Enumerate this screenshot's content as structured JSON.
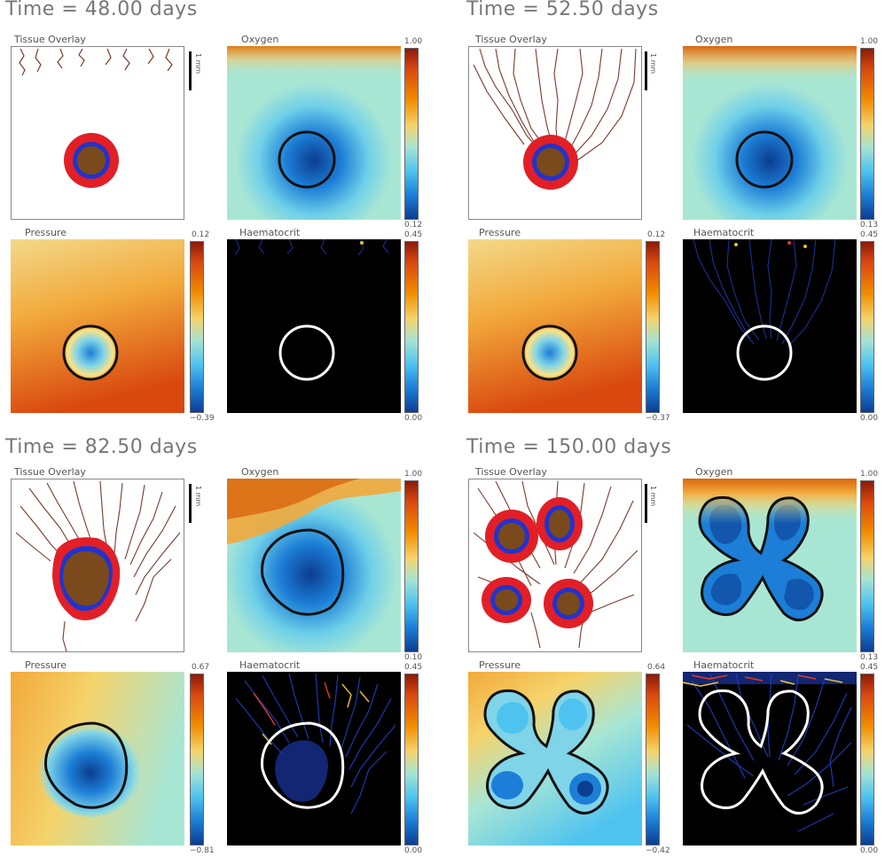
{
  "colors": {
    "tumour_core": "#7a4a1c",
    "tumour_rim": "#2233cc",
    "necrotic_halo": "#e21f26",
    "vessels": "#7b3a2c",
    "contour_dark": "#111111",
    "contour_light": "#ffffff",
    "haematocrit_bg": "#000000"
  },
  "quadrants": [
    {
      "time_label": "Time = 48.00 days",
      "panels": {
        "tissue": {
          "label": "Tissue Overlay",
          "scale_label": "1 mm"
        },
        "oxygen": {
          "label": "Oxygen",
          "cbar_max": "1.00",
          "cbar_min": "0.12"
        },
        "pressure": {
          "label": "Pressure",
          "cbar_max": "0.12",
          "cbar_min": "−0.39"
        },
        "haematocrit": {
          "label": "Haematocrit",
          "cbar_max": "0.45",
          "cbar_min": "0.00"
        }
      }
    },
    {
      "time_label": "Time = 52.50 days",
      "panels": {
        "tissue": {
          "label": "Tissue Overlay",
          "scale_label": "1 mm"
        },
        "oxygen": {
          "label": "Oxygen",
          "cbar_max": "1.00",
          "cbar_min": "0.13"
        },
        "pressure": {
          "label": "Pressure",
          "cbar_max": "0.12",
          "cbar_min": "−0.37"
        },
        "haematocrit": {
          "label": "Haematocrit",
          "cbar_max": "0.45",
          "cbar_min": "0.00"
        }
      }
    },
    {
      "time_label": "Time = 82.50 days",
      "panels": {
        "tissue": {
          "label": "Tissue Overlay",
          "scale_label": "1 mm"
        },
        "oxygen": {
          "label": "Oxygen",
          "cbar_max": "1.00",
          "cbar_min": "0.10"
        },
        "pressure": {
          "label": "Pressure",
          "cbar_max": "0.67",
          "cbar_min": "−0.81"
        },
        "haematocrit": {
          "label": "Haematocrit",
          "cbar_max": "0.45",
          "cbar_min": "0.00"
        }
      }
    },
    {
      "time_label": "Time = 150.00 days",
      "panels": {
        "tissue": {
          "label": "Tissue Overlay",
          "scale_label": "1 mm"
        },
        "oxygen": {
          "label": "Oxygen",
          "cbar_max": "1.00",
          "cbar_min": "0.13"
        },
        "pressure": {
          "label": "Pressure",
          "cbar_max": "0.64",
          "cbar_min": "−0.42"
        },
        "haematocrit": {
          "label": "Haematocrit",
          "cbar_max": "0.45",
          "cbar_min": "0.00"
        }
      }
    }
  ]
}
